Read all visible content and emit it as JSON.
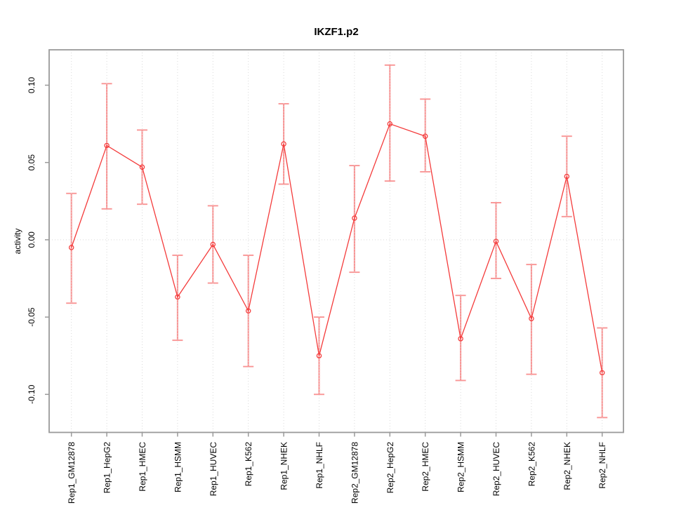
{
  "figure": {
    "background": "#ffffff"
  },
  "chart_data": {
    "type": "line",
    "title": "IKZF1.p2",
    "xlabel": "",
    "ylabel": "activity",
    "legend_position": "none",
    "marker": "open-circle",
    "grid": {
      "vertical_at_each_category": true,
      "horizontal_at_zero": true,
      "style": "dotted",
      "color": "#d9d9d9"
    },
    "ylim": [
      -0.1246,
      0.1229
    ],
    "yticks": {
      "values": [
        0.1,
        0.05,
        0.0,
        -0.05,
        -0.1
      ],
      "labels": [
        "0.10",
        "0.05",
        "0.00",
        "-0.05",
        "-0.10"
      ]
    },
    "categories": [
      "Rep1_GM12878",
      "Rep1_HepG2",
      "Rep1_HMEC",
      "Rep1_HSMM",
      "Rep1_HUVEC",
      "Rep1_K562",
      "Rep1_NHEK",
      "Rep1_NHLF",
      "Rep2_GM12878",
      "Rep2_HepG2",
      "Rep2_HMEC",
      "Rep2_HSMM",
      "Rep2_HUVEC",
      "Rep2_K562",
      "Rep2_NHEK",
      "Rep2_NHLF"
    ],
    "series": [
      {
        "name": "activity",
        "values": [
          -0.005,
          0.061,
          0.047,
          -0.037,
          -0.003,
          -0.046,
          0.062,
          -0.075,
          0.014,
          0.075,
          0.067,
          -0.064,
          -0.001,
          -0.051,
          0.041,
          -0.086
        ],
        "err_hi": [
          0.03,
          0.101,
          0.071,
          -0.01,
          0.022,
          -0.01,
          0.088,
          -0.05,
          0.048,
          0.113,
          0.091,
          -0.036,
          0.024,
          -0.016,
          0.067,
          -0.057
        ],
        "err_lo": [
          -0.041,
          0.02,
          0.023,
          -0.065,
          -0.028,
          -0.082,
          0.036,
          -0.1,
          -0.021,
          0.038,
          0.044,
          -0.091,
          -0.025,
          -0.087,
          0.015,
          -0.115
        ]
      }
    ],
    "colors": {
      "series_line": "#f43b3b",
      "marker_stroke": "#f43b3b",
      "error_bar": "#f99595",
      "grid": "#d9d9d9",
      "axis_box": "#9a9a9a",
      "text": "#000000"
    }
  }
}
